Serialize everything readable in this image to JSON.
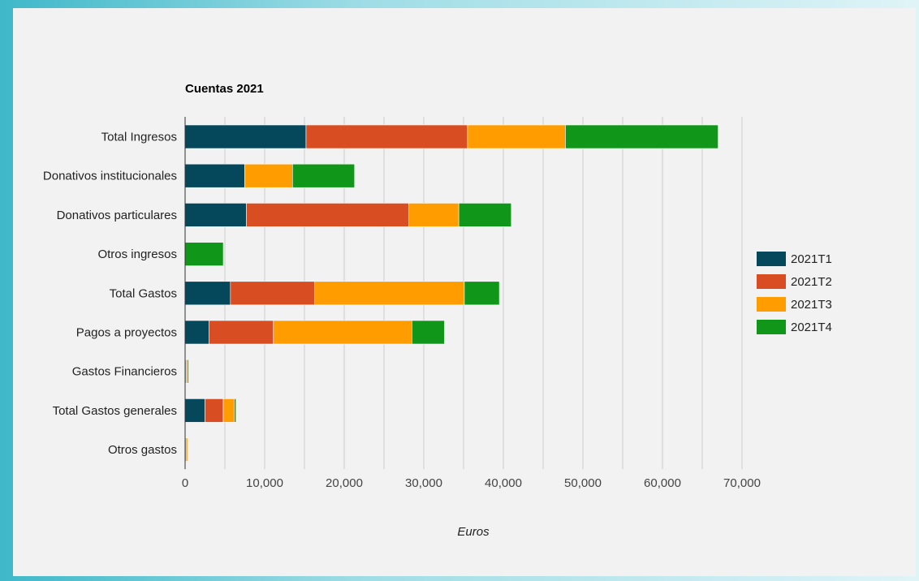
{
  "chart_data": {
    "type": "bar",
    "orientation": "horizontal",
    "stacked": true,
    "title": "Cuentas 2021",
    "xlabel": "Euros",
    "ylabel": "",
    "xlim": [
      0,
      70000
    ],
    "x_ticks": [
      0,
      10000,
      20000,
      30000,
      40000,
      50000,
      60000,
      70000
    ],
    "x_tick_labels": [
      "0",
      "10,000",
      "20,000",
      "30,000",
      "40,000",
      "50,000",
      "60,000",
      "70,000"
    ],
    "grid": "vertical",
    "legend_position": "right",
    "categories": [
      "Total Ingresos",
      "Donativos institucionales",
      "Donativos particulares",
      "Otros ingresos",
      "Total Gastos",
      "Pagos a proyectos",
      "Gastos Financieros",
      "Total Gastos generales",
      "Otros gastos"
    ],
    "series": [
      {
        "name": "2021T1",
        "color": "#05475b",
        "values": [
          15200,
          7500,
          7700,
          0,
          5700,
          3000,
          100,
          2500,
          100
        ]
      },
      {
        "name": "2021T2",
        "color": "#d84e22",
        "values": [
          20300,
          0,
          20400,
          0,
          10600,
          8100,
          100,
          2300,
          100
        ]
      },
      {
        "name": "2021T3",
        "color": "#ff9c00",
        "values": [
          12300,
          6000,
          6300,
          0,
          18800,
          17400,
          100,
          1400,
          100
        ]
      },
      {
        "name": "2021T4",
        "color": "#109618",
        "values": [
          19200,
          7800,
          6600,
          4800,
          4400,
          4100,
          100,
          200,
          0
        ]
      }
    ]
  }
}
